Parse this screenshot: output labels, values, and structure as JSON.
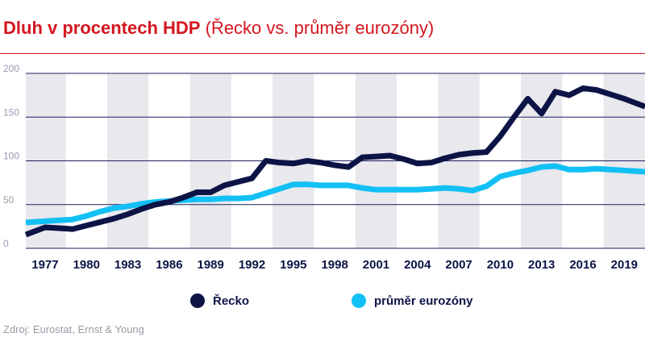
{
  "title": {
    "bold": "Dluh v procentech HDP",
    "normal": "(Řecko vs. průměr eurozóny)"
  },
  "source": "Zdroj: Eurostat, Ernst & Young",
  "colors": {
    "title": "#d4161f",
    "greece": "#0c1446",
    "eurozone": "#12c0f5",
    "band": "#e8e8ed",
    "grid": "#1a1f5e"
  },
  "chart_data": {
    "type": "line",
    "xlabel": "",
    "ylabel": "",
    "ylim": [
      0,
      200
    ],
    "xlim": [
      1975.6,
      2020.5
    ],
    "yticks": [
      0,
      50,
      100,
      150,
      200
    ],
    "xticks": [
      1977,
      1980,
      1983,
      1986,
      1989,
      1992,
      1995,
      1998,
      2001,
      2004,
      2007,
      2010,
      2013,
      2016,
      2019
    ],
    "grid": true,
    "legend_position": "bottom",
    "x": [
      1976,
      1977,
      1978,
      1979,
      1980,
      1981,
      1982,
      1983,
      1984,
      1985,
      1986,
      1987,
      1988,
      1989,
      1990,
      1991,
      1992,
      1993,
      1994,
      1995,
      1996,
      1997,
      1998,
      1999,
      2000,
      2001,
      2002,
      2003,
      2004,
      2005,
      2006,
      2007,
      2008,
      2009,
      2010,
      2011,
      2012,
      2013,
      2014,
      2015,
      2016,
      2017,
      2018,
      2019,
      2020
    ],
    "series": [
      {
        "name": "Řecko",
        "color": "#0c1446",
        "values": [
          18,
          24,
          23,
          22,
          26,
          30,
          34,
          39,
          45,
          50,
          53,
          58,
          64,
          64,
          72,
          76,
          80,
          100,
          98,
          97,
          100,
          98,
          95,
          93,
          104,
          105,
          106,
          102,
          97,
          98,
          103,
          107,
          109,
          110,
          128,
          150,
          171,
          154,
          179,
          175,
          183,
          181,
          176,
          171,
          165
        ]
      },
      {
        "name": "průměr eurozóny",
        "color": "#12c0f5",
        "values": [
          30,
          31,
          32,
          33,
          37,
          42,
          46,
          48,
          51,
          53,
          54,
          55,
          56,
          56,
          57,
          57,
          58,
          63,
          68,
          73,
          73,
          72,
          72,
          72,
          69,
          67,
          67,
          67,
          67,
          68,
          69,
          68,
          66,
          71,
          82,
          86,
          89,
          93,
          94,
          90,
          90,
          91,
          90,
          89,
          88
        ]
      }
    ]
  }
}
